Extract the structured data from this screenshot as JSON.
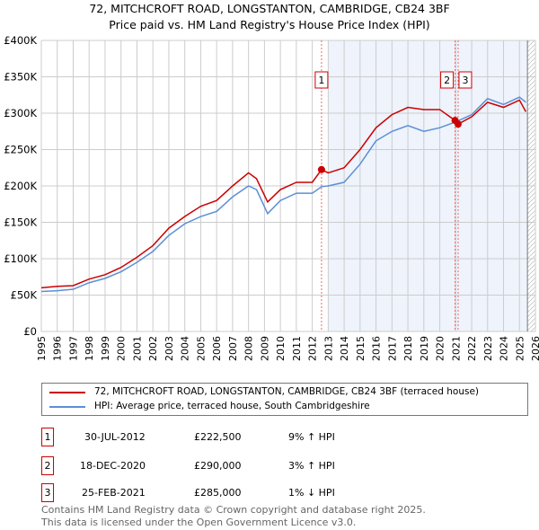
{
  "chart_data": {
    "type": "line",
    "title": "72, MITCHCROFT ROAD, LONGSTANTON, CAMBRIDGE, CB24 3BF",
    "subtitle": "Price paid vs. HM Land Registry's House Price Index (HPI)",
    "xlim": [
      1995,
      2026
    ],
    "ylim": [
      0,
      400000
    ],
    "x_ticks": [
      "1995",
      "1996",
      "1997",
      "1998",
      "1999",
      "2000",
      "2001",
      "2002",
      "2003",
      "2004",
      "2005",
      "2006",
      "2007",
      "2008",
      "2009",
      "2010",
      "2011",
      "2012",
      "2013",
      "2014",
      "2015",
      "2016",
      "2017",
      "2018",
      "2019",
      "2020",
      "2021",
      "2022",
      "2023",
      "2024",
      "2025",
      "2026"
    ],
    "y_ticks": [
      {
        "v": 0,
        "label": "£0"
      },
      {
        "v": 50000,
        "label": "£50K"
      },
      {
        "v": 100000,
        "label": "£100K"
      },
      {
        "v": 150000,
        "label": "£150K"
      },
      {
        "v": 200000,
        "label": "£200K"
      },
      {
        "v": 250000,
        "label": "£250K"
      },
      {
        "v": 300000,
        "label": "£300K"
      },
      {
        "v": 350000,
        "label": "£350K"
      },
      {
        "v": 400000,
        "label": "£400K"
      }
    ],
    "grid": true,
    "series": [
      {
        "name": "72, MITCHCROFT ROAD, LONGSTANTON, CAMBRIDGE, CB24 3BF (terraced house)",
        "color": "#cc0000",
        "x": [
          1995,
          1996,
          1997,
          1998,
          1999,
          2000,
          2001,
          2002,
          2003,
          2004,
          2005,
          2006,
          2007,
          2008,
          2008.5,
          2009.2,
          2010,
          2011,
          2012,
          2012.58,
          2013,
          2014,
          2015,
          2016,
          2017,
          2018,
          2019,
          2020,
          2020.96,
          2021.15,
          2022,
          2023,
          2024,
          2025,
          2025.4
        ],
        "y": [
          60000,
          62000,
          63000,
          72000,
          78000,
          88000,
          102000,
          118000,
          142000,
          158000,
          172000,
          180000,
          200000,
          218000,
          210000,
          178000,
          195000,
          205000,
          205000,
          222500,
          218000,
          225000,
          250000,
          280000,
          298000,
          308000,
          305000,
          305000,
          290000,
          285000,
          295000,
          315000,
          308000,
          318000,
          302000
        ]
      },
      {
        "name": "HPI: Average price, terraced house, South Cambridgeshire",
        "color": "#5b8fd6",
        "x": [
          1995,
          1996,
          1997,
          1998,
          1999,
          2000,
          2001,
          2002,
          2003,
          2004,
          2005,
          2006,
          2007,
          2008,
          2008.5,
          2009.2,
          2010,
          2011,
          2012,
          2012.58,
          2013,
          2014,
          2015,
          2016,
          2017,
          2018,
          2019,
          2020,
          2021,
          2022,
          2023,
          2024,
          2025,
          2025.4
        ],
        "y": [
          55000,
          56000,
          58000,
          67000,
          73000,
          82000,
          95000,
          110000,
          132000,
          148000,
          158000,
          165000,
          185000,
          200000,
          195000,
          162000,
          180000,
          190000,
          190000,
          199000,
          200000,
          205000,
          230000,
          262000,
          275000,
          283000,
          275000,
          280000,
          288000,
          298000,
          320000,
          312000,
          322000,
          315000
        ]
      }
    ],
    "sales": [
      {
        "id": "1",
        "x": 2012.58,
        "date": "30-JUL-2012",
        "price": "£222,500",
        "value": 222500,
        "hpi": "9% ↑ HPI"
      },
      {
        "id": "2",
        "x": 2020.96,
        "date": "18-DEC-2020",
        "price": "£290,000",
        "value": 290000,
        "hpi": "3% ↑ HPI"
      },
      {
        "id": "3",
        "x": 2021.15,
        "date": "25-FEB-2021",
        "price": "£285,000",
        "value": 285000,
        "hpi": "1% ↓ HPI"
      }
    ],
    "shaded_range": [
      2013,
      2025.5
    ],
    "legend_position": "below"
  },
  "footer": {
    "line1": "Contains HM Land Registry data © Crown copyright and database right 2025.",
    "line2": "This data is licensed under the Open Government Licence v3.0."
  }
}
